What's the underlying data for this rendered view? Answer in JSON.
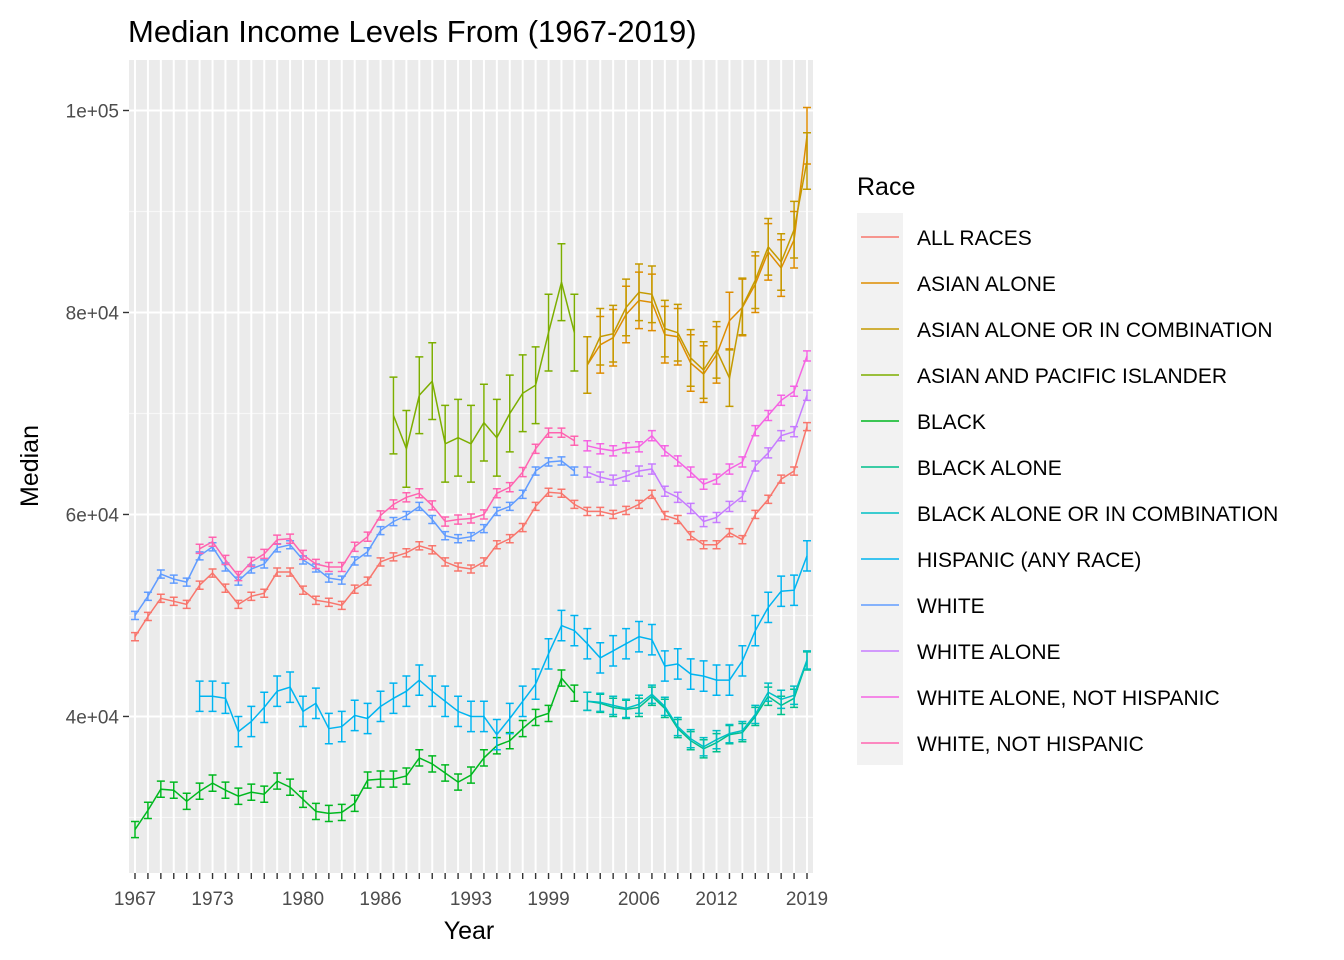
{
  "chart_data": {
    "type": "line",
    "title": "Median Income Levels From (1967-2019)",
    "xlabel": "Year",
    "ylabel": "Median",
    "xlim": [
      1967,
      2019
    ],
    "ylim": [
      24500,
      105000
    ],
    "x_tick_labels": [
      "1967",
      "1973",
      "1980",
      "1986",
      "1993",
      "1999",
      "2006",
      "2012",
      "2019"
    ],
    "y_ticks": [
      40000,
      60000,
      80000,
      100000
    ],
    "y_tick_labels": [
      "4e+04",
      "6e+04",
      "8e+04",
      "1e+05"
    ],
    "grid": true,
    "legend_title": "Race",
    "legend_position": "right",
    "background": "#ebebeb",
    "series": [
      {
        "name": "ALL RACES",
        "color": "#F8766D",
        "err": 400,
        "x": [
          1967,
          1968,
          1969,
          1970,
          1971,
          1972,
          1973,
          1974,
          1975,
          1976,
          1977,
          1978,
          1979,
          1980,
          1981,
          1982,
          1983,
          1984,
          1985,
          1986,
          1987,
          1988,
          1989,
          1990,
          1991,
          1992,
          1993,
          1994,
          1995,
          1996,
          1997,
          1998,
          1999,
          2000,
          2001,
          2002,
          2003,
          2004,
          2005,
          2006,
          2007,
          2008,
          2009,
          2010,
          2011,
          2012,
          2013,
          2014,
          2015,
          2016,
          2017,
          2018,
          2019
        ],
        "y": [
          47900,
          49900,
          51700,
          51400,
          51100,
          53000,
          54200,
          52700,
          51100,
          51900,
          52200,
          54300,
          54300,
          52500,
          51500,
          51300,
          51000,
          52600,
          53400,
          55300,
          55800,
          56200,
          56900,
          56500,
          55300,
          54800,
          54600,
          55300,
          57000,
          57600,
          58700,
          60800,
          62200,
          62100,
          61000,
          60300,
          60300,
          60000,
          60400,
          61000,
          62000,
          59900,
          59500,
          57900,
          57000,
          57000,
          58200,
          57500,
          60000,
          61500,
          63500,
          64300,
          68700
        ]
      },
      {
        "name": "ASIAN ALONE",
        "color": "#DE8C00",
        "err": 2800,
        "x": [
          2002,
          2003,
          2004,
          2005,
          2006,
          2007,
          2008,
          2009,
          2010,
          2011,
          2012,
          2013,
          2014,
          2015,
          2016,
          2017,
          2018,
          2019
        ],
        "y": [
          74800,
          76800,
          77500,
          79800,
          81200,
          81000,
          77800,
          77600,
          75000,
          73900,
          75800,
          79200,
          80500,
          82800,
          86000,
          84400,
          87200,
          97500
        ]
      },
      {
        "name": "ASIAN ALONE OR IN COMBINATION",
        "color": "#C49A00",
        "err": 2800,
        "x": [
          2002,
          2003,
          2004,
          2005,
          2006,
          2007,
          2008,
          2009,
          2010,
          2011,
          2012,
          2013,
          2014,
          2015,
          2016,
          2017,
          2018,
          2019
        ],
        "y": [
          74800,
          77600,
          77900,
          80500,
          82000,
          81800,
          78400,
          78000,
          75500,
          74300,
          76300,
          73500,
          80600,
          83200,
          86500,
          85000,
          88200,
          95000
        ]
      },
      {
        "name": "ASIAN AND PACIFIC ISLANDER",
        "color": "#7CAE00",
        "err": 3800,
        "x": [
          1987,
          1988,
          1989,
          1990,
          1991,
          1992,
          1993,
          1994,
          1995,
          1996,
          1997,
          1998,
          1999,
          2000,
          2001
        ],
        "y": [
          69800,
          66500,
          71800,
          73200,
          67000,
          67600,
          67000,
          69100,
          67600,
          70000,
          72000,
          72800,
          78000,
          83000,
          78000
        ]
      },
      {
        "name": "BLACK",
        "color": "#00B81F",
        "err": 800,
        "x": [
          1967,
          1968,
          1969,
          1970,
          1971,
          1972,
          1973,
          1974,
          1975,
          1976,
          1977,
          1978,
          1979,
          1980,
          1981,
          1982,
          1983,
          1984,
          1985,
          1986,
          1987,
          1988,
          1989,
          1990,
          1991,
          1992,
          1993,
          1994,
          1995,
          1996,
          1997,
          1998,
          1999,
          2000,
          2001
        ],
        "y": [
          28800,
          30700,
          32800,
          32700,
          31600,
          32600,
          33400,
          32700,
          32100,
          32500,
          32300,
          33600,
          33000,
          31800,
          30600,
          30400,
          30500,
          31400,
          33700,
          33800,
          33800,
          34100,
          35900,
          35300,
          34400,
          33500,
          34200,
          35900,
          37100,
          37600,
          38800,
          39900,
          40300,
          43800,
          42300
        ]
      },
      {
        "name": "BLACK ALONE",
        "color": "#00C08B",
        "err": 900,
        "x": [
          2002,
          2003,
          2004,
          2005,
          2006,
          2007,
          2008,
          2009,
          2010,
          2011,
          2012,
          2013,
          2014,
          2015,
          2016,
          2017,
          2018,
          2019
        ],
        "y": [
          41500,
          41300,
          40900,
          40700,
          40900,
          42000,
          40800,
          38800,
          37600,
          36800,
          37400,
          38200,
          38400,
          40000,
          42000,
          41100,
          41800,
          45500
        ]
      },
      {
        "name": "BLACK ALONE OR IN COMBINATION",
        "color": "#00BFC4",
        "err": 900,
        "x": [
          2002,
          2003,
          2004,
          2005,
          2006,
          2007,
          2008,
          2009,
          2010,
          2011,
          2012,
          2013,
          2014,
          2015,
          2016,
          2017,
          2018,
          2019
        ],
        "y": [
          41500,
          41400,
          41100,
          40800,
          41200,
          42200,
          41000,
          39000,
          37800,
          37000,
          37700,
          38300,
          38600,
          40200,
          42400,
          41700,
          42100,
          45600
        ]
      },
      {
        "name": "HISPANIC (ANY RACE)",
        "color": "#00B4F0",
        "err": 1500,
        "x": [
          1972,
          1973,
          1974,
          1975,
          1976,
          1977,
          1978,
          1979,
          1980,
          1981,
          1982,
          1983,
          1984,
          1985,
          1986,
          1987,
          1988,
          1989,
          1990,
          1991,
          1992,
          1993,
          1994,
          1995,
          1996,
          1997,
          1998,
          1999,
          2000,
          2001,
          2002,
          2003,
          2004,
          2005,
          2006,
          2007,
          2008,
          2009,
          2010,
          2011,
          2012,
          2013,
          2014,
          2015,
          2016,
          2017,
          2018,
          2019
        ],
        "y": [
          42000,
          42000,
          41800,
          38500,
          39500,
          40900,
          42500,
          42900,
          40500,
          41300,
          38800,
          39000,
          40100,
          39800,
          41000,
          41800,
          42500,
          43600,
          42500,
          41500,
          40500,
          40000,
          40000,
          38200,
          39800,
          41500,
          43200,
          46200,
          49000,
          48500,
          47200,
          45800,
          46500,
          47200,
          47900,
          47600,
          45000,
          45200,
          44200,
          44000,
          43600,
          43600,
          45500,
          48500,
          50800,
          52400,
          52500,
          55900
        ]
      },
      {
        "name": "WHITE",
        "color": "#619CFF",
        "err": 400,
        "x": [
          1967,
          1968,
          1969,
          1970,
          1971,
          1972,
          1973,
          1974,
          1975,
          1976,
          1977,
          1978,
          1979,
          1980,
          1981,
          1982,
          1983,
          1984,
          1985,
          1986,
          1987,
          1988,
          1989,
          1990,
          1991,
          1992,
          1993,
          1994,
          1995,
          1996,
          1997,
          1998,
          1999,
          2000,
          2001
        ],
        "y": [
          50000,
          51900,
          54100,
          53600,
          53300,
          55900,
          56800,
          54800,
          53400,
          54600,
          55100,
          56700,
          57000,
          55500,
          54700,
          53700,
          53500,
          55400,
          56300,
          58400,
          59300,
          59900,
          60800,
          59500,
          57900,
          57600,
          57800,
          58600,
          60300,
          60800,
          62000,
          64300,
          65200,
          65300,
          64300
        ]
      },
      {
        "name": "WHITE ALONE",
        "color": "#C77CFF",
        "err": 500,
        "x": [
          2002,
          2003,
          2004,
          2005,
          2006,
          2007,
          2008,
          2009,
          2010,
          2011,
          2012,
          2013,
          2014,
          2015,
          2016,
          2017,
          2018,
          2019
        ],
        "y": [
          64200,
          63700,
          63400,
          63800,
          64300,
          64500,
          62300,
          61700,
          60600,
          59300,
          59700,
          60800,
          61800,
          64800,
          66100,
          67800,
          68200,
          71800
        ]
      },
      {
        "name": "WHITE ALONE, NOT HISPANIC",
        "color": "#F564E3",
        "err": 500,
        "x": [
          2002,
          2003,
          2004,
          2005,
          2006,
          2007,
          2008,
          2009,
          2010,
          2011,
          2012,
          2013,
          2014,
          2015,
          2016,
          2017,
          2018,
          2019
        ],
        "y": [
          66800,
          66500,
          66300,
          66600,
          66700,
          67800,
          66300,
          65300,
          64200,
          63000,
          63500,
          64500,
          65200,
          68300,
          69800,
          71300,
          72200,
          75700
        ]
      },
      {
        "name": "WHITE, NOT HISPANIC",
        "color": "#FF64B0",
        "err": 450,
        "x": [
          1972,
          1973,
          1974,
          1975,
          1976,
          1977,
          1978,
          1979,
          1980,
          1981,
          1982,
          1983,
          1984,
          1985,
          1986,
          1987,
          1988,
          1989,
          1990,
          1991,
          1992,
          1993,
          1994,
          1995,
          1996,
          1997,
          1998,
          1999,
          2000,
          2001
        ],
        "y": [
          56600,
          57300,
          55500,
          53900,
          55300,
          56100,
          57500,
          57600,
          56000,
          55100,
          54800,
          54800,
          56800,
          57800,
          59900,
          61000,
          61700,
          62100,
          60900,
          59300,
          59500,
          59600,
          60000,
          62100,
          62700,
          64200,
          66500,
          68100,
          68100,
          67300
        ]
      }
    ]
  }
}
